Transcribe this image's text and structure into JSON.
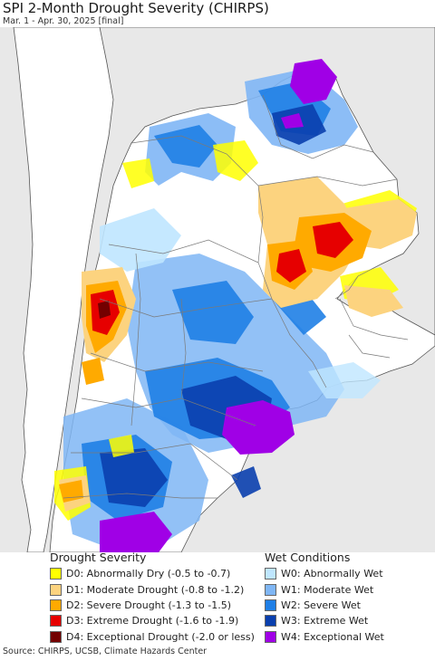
{
  "title": "SPI 2-Month Drought Severity (CHIRPS)",
  "subtitle": "Mar. 1 - Apr. 30, 2025 [final]",
  "legend": {
    "drought_heading": "Drought Severity",
    "wet_heading": "Wet Conditions",
    "drought_items": [
      {
        "label": "D0: Abnormally Dry (-0.5 to -0.7)",
        "color": "#ffff00"
      },
      {
        "label": "D1: Moderate Drought (-0.8 to -1.2)",
        "color": "#fcd37f"
      },
      {
        "label": "D2: Severe Drought (-1.3 to -1.5)",
        "color": "#ffaa00"
      },
      {
        "label": "D3: Extreme Drought (-1.6 to -1.9)",
        "color": "#e60000"
      },
      {
        "label": "D4: Exceptional Drought (-2.0 or less)",
        "color": "#730000"
      }
    ],
    "wet_items": [
      {
        "label": "W0: Abnormally Wet",
        "color": "#bfe6ff"
      },
      {
        "label": "W1: Moderate Wet",
        "color": "#7fb6f5"
      },
      {
        "label": "W2: Severe Wet",
        "color": "#1f7fe6"
      },
      {
        "label": "W3: Extreme Wet",
        "color": "#0a3fae"
      },
      {
        "label": "W4: Exceptional Wet",
        "color": "#a000e6"
      }
    ]
  },
  "source": "Source: CHIRPS, UCSB, Climate Hazards Center",
  "map": {
    "ocean_color": "#e8e8e8",
    "land_color": "#ffffff",
    "border_color": "#8a8a8a"
  }
}
